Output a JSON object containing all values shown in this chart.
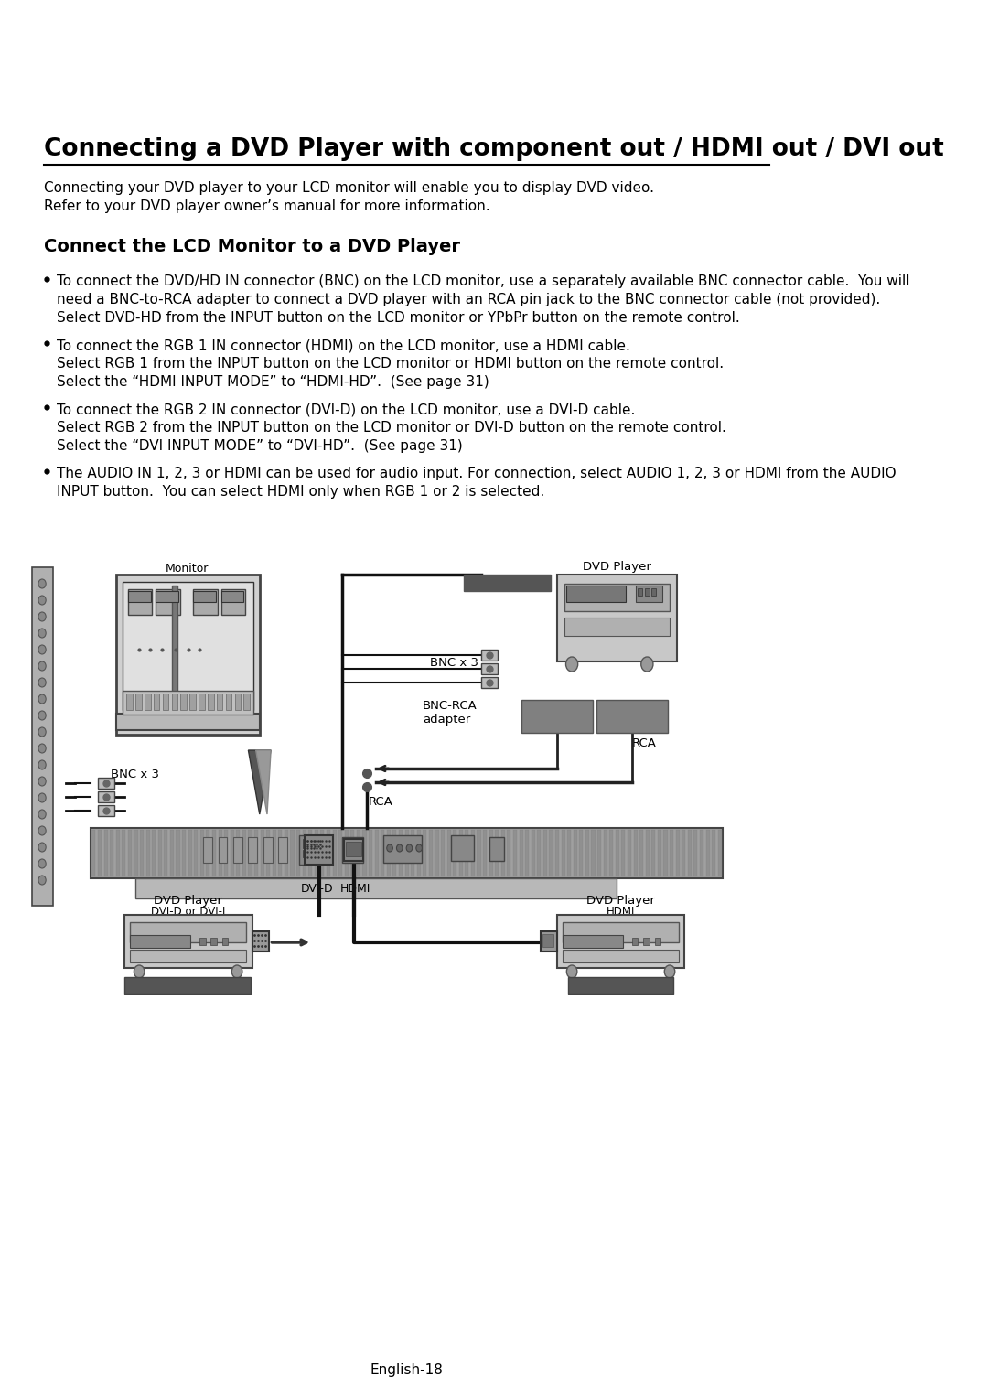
{
  "title": "Connecting a DVD Player with component out / HDMI out / DVI out",
  "subtitle1": "Connecting your DVD player to your LCD monitor will enable you to display DVD video.",
  "subtitle2": "Refer to your DVD player owner’s manual for more information.",
  "section_title": "Connect the LCD Monitor to a DVD Player",
  "bullet1_line1": "To connect the DVD/HD IN connector (BNC) on the LCD monitor, use a separately available BNC connector cable.  You will",
  "bullet1_line2": "need a BNC-to-RCA adapter to connect a DVD player with an RCA pin jack to the BNC connector cable (not provided).",
  "bullet1_line3": "Select DVD-HD from the INPUT button on the LCD monitor or YPbPr button on the remote control.",
  "bullet2_line1": "To connect the RGB 1 IN connector (HDMI) on the LCD monitor, use a HDMI cable.",
  "bullet2_line2": "Select RGB 1 from the INPUT button on the LCD monitor or HDMI button on the remote control.",
  "bullet2_line3": "Select the “HDMI INPUT MODE” to “HDMI-HD”.  (See page 31)",
  "bullet3_line1": "To connect the RGB 2 IN connector (DVI-D) on the LCD monitor, use a DVI-D cable.",
  "bullet3_line2": "Select RGB 2 from the INPUT button on the LCD monitor or DVI-D button on the remote control.",
  "bullet3_line3": "Select the “DVI INPUT MODE” to “DVI-HD”.  (See page 31)",
  "bullet4_line1": "The AUDIO IN 1, 2, 3 or HDMI can be used for audio input. For connection, select AUDIO 1, 2, 3 or HDMI from the AUDIO",
  "bullet4_line2": "INPUT button.  You can select HDMI only when RGB 1 or 2 is selected.",
  "footer": "English-18",
  "bg_color": "#ffffff",
  "text_color": "#000000"
}
